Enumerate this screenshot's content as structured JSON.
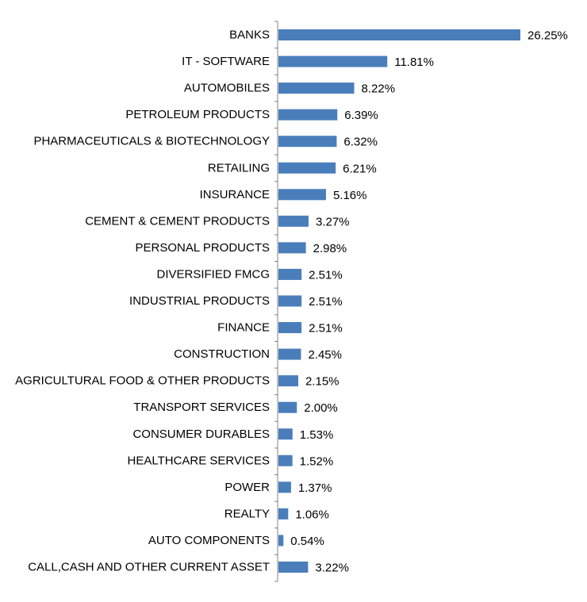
{
  "chart_data": {
    "type": "bar",
    "orientation": "horizontal",
    "categories": [
      "BANKS",
      "IT - SOFTWARE",
      "AUTOMOBILES",
      "PETROLEUM PRODUCTS",
      "PHARMACEUTICALS & BIOTECHNOLOGY",
      "RETAILING",
      "INSURANCE",
      "CEMENT & CEMENT PRODUCTS",
      "PERSONAL PRODUCTS",
      "DIVERSIFIED FMCG",
      "INDUSTRIAL PRODUCTS",
      "FINANCE",
      "CONSTRUCTION",
      "AGRICULTURAL FOOD & OTHER PRODUCTS",
      "TRANSPORT SERVICES",
      "CONSUMER DURABLES",
      "HEALTHCARE SERVICES",
      "POWER",
      "REALTY",
      "AUTO COMPONENTS",
      "CALL,CASH AND OTHER CURRENT ASSET"
    ],
    "values": [
      26.25,
      11.81,
      8.22,
      6.39,
      6.32,
      6.21,
      5.16,
      3.27,
      2.98,
      2.51,
      2.51,
      2.51,
      2.45,
      2.15,
      2.0,
      1.53,
      1.52,
      1.37,
      1.06,
      0.54,
      3.22
    ],
    "value_labels": [
      "26.25%",
      "11.81%",
      "8.22%",
      "6.39%",
      "6.32%",
      "6.21%",
      "5.16%",
      "3.27%",
      "2.98%",
      "2.51%",
      "2.51%",
      "2.51%",
      "2.45%",
      "2.15%",
      "2.00%",
      "1.53%",
      "1.52%",
      "1.37%",
      "1.06%",
      "0.54%",
      "3.22%"
    ],
    "xlim": [
      0,
      26.25
    ],
    "grid": false,
    "legend": "none",
    "bar_color": "#4a7ebb",
    "axis_color": "#808080"
  }
}
